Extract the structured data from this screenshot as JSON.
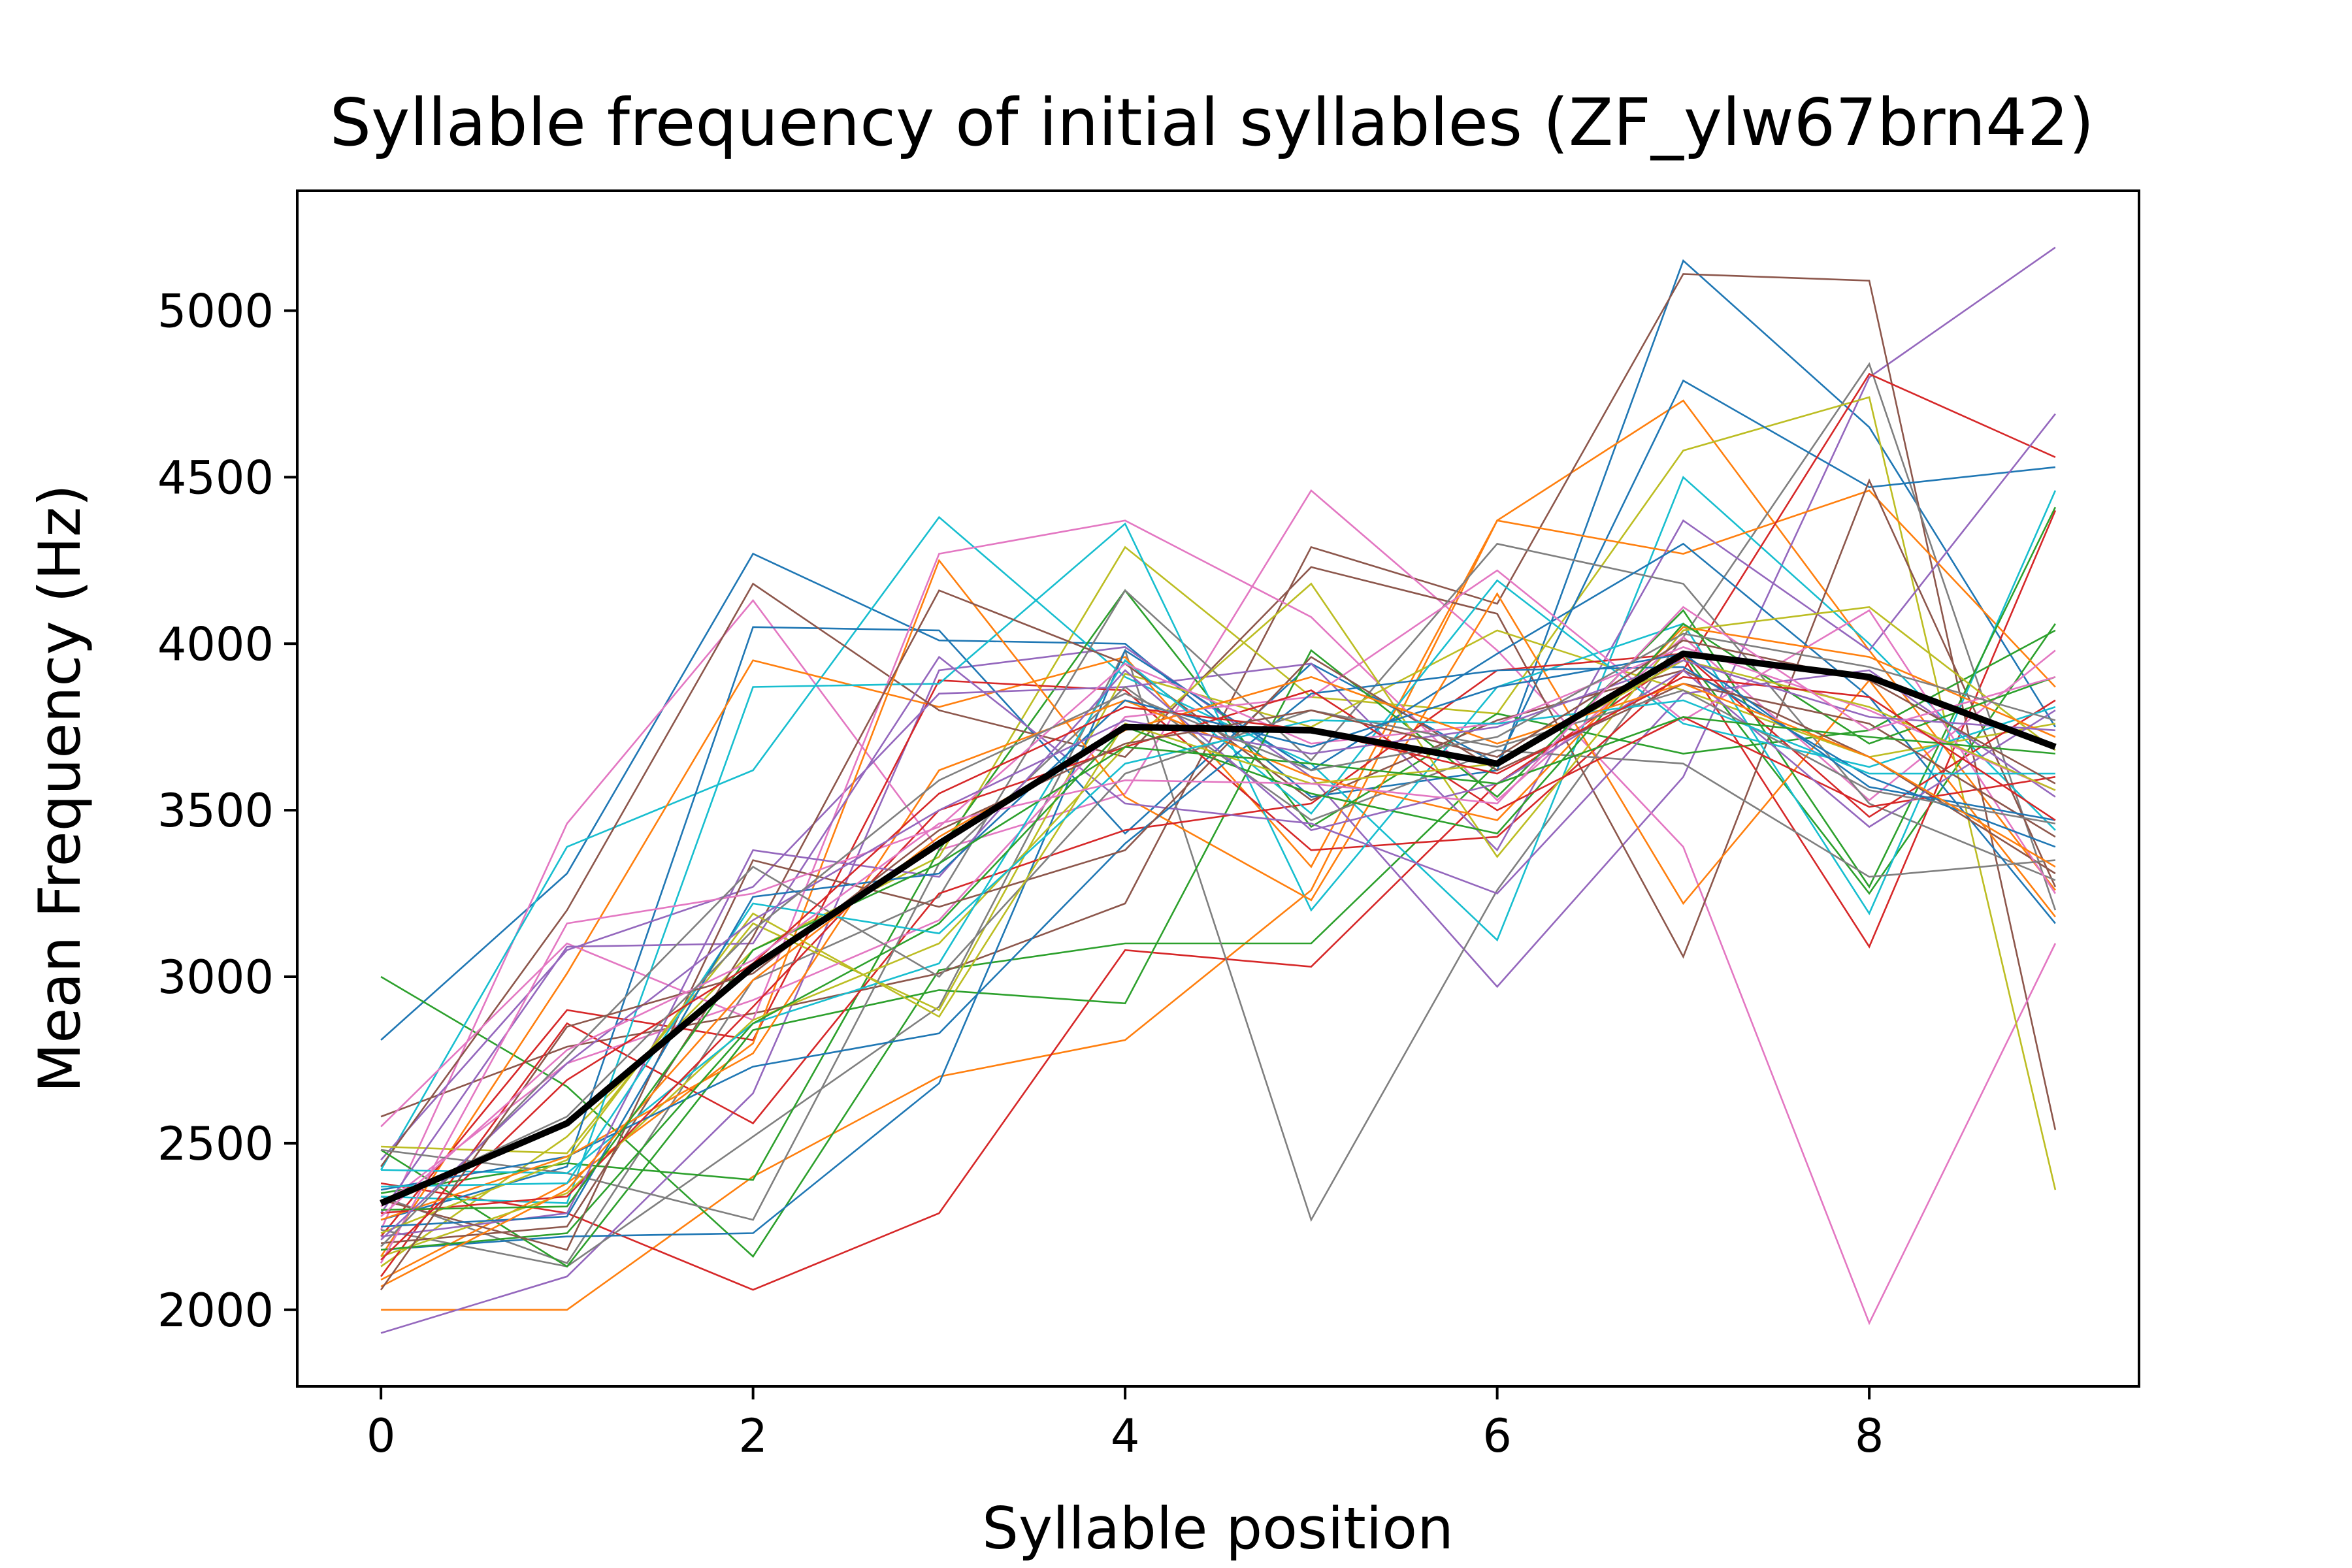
{
  "chart_data": {
    "type": "line",
    "title": "Syllable frequency of initial syllables (ZF_ylw67brn42)",
    "xlabel": "Syllable position",
    "ylabel": "Mean Frequency (Hz)",
    "x": [
      0,
      1,
      2,
      3,
      4,
      5,
      6,
      7,
      8,
      9
    ],
    "xlim": [
      -0.45,
      9.45
    ],
    "ylim": [
      1770,
      5360
    ],
    "xticks": [
      "0",
      "2",
      "4",
      "6",
      "8"
    ],
    "yticks": [
      "2000",
      "2500",
      "3000",
      "3500",
      "4000",
      "4500",
      "5000"
    ],
    "grid": false,
    "legend": "none",
    "mean_series": {
      "color": "#000000",
      "values": [
        2320,
        2560,
        3030,
        3400,
        3750,
        3740,
        3640,
        3970,
        3900,
        3690
      ]
    },
    "series": [
      {
        "color": "#1f77b4",
        "values": [
          2810,
          3310,
          4270,
          4010,
          4000,
          3540,
          3620,
          5150,
          4650,
          3750
        ]
      },
      {
        "color": "#ff7f0e",
        "values": [
          2000,
          2000,
          2400,
          2700,
          2810,
          3260,
          4370,
          4730,
          3980,
          3260
        ]
      },
      {
        "color": "#2ca02c",
        "values": [
          3000,
          2670,
          2160,
          3020,
          3100,
          3100,
          3640,
          3970,
          3250,
          4060
        ]
      },
      {
        "color": "#d62728",
        "values": [
          2380,
          2290,
          2060,
          2290,
          3080,
          3030,
          3580,
          3960,
          3090,
          4400
        ]
      },
      {
        "color": "#9467bd",
        "values": [
          1930,
          2100,
          2650,
          3920,
          3990,
          3600,
          2970,
          3600,
          4800,
          5190
        ]
      },
      {
        "color": "#8c564b",
        "values": [
          2580,
          2790,
          2890,
          3010,
          3220,
          4290,
          4120,
          5110,
          5090,
          2540
        ]
      },
      {
        "color": "#e377c2",
        "values": [
          2240,
          3460,
          4130,
          3380,
          3550,
          4460,
          3980,
          3390,
          1960,
          3100
        ]
      },
      {
        "color": "#7f7f7f",
        "values": [
          2240,
          2130,
          2520,
          2910,
          3980,
          2270,
          3260,
          4020,
          4840,
          3200
        ]
      },
      {
        "color": "#bcbd22",
        "values": [
          2130,
          2520,
          3080,
          3360,
          4290,
          3840,
          3790,
          4580,
          4740,
          2360
        ]
      },
      {
        "color": "#17becf",
        "values": [
          2420,
          3390,
          3620,
          4380,
          3900,
          3640,
          3110,
          4500,
          4000,
          3440
        ]
      },
      {
        "color": "#1f77b4",
        "values": [
          2270,
          2430,
          4050,
          4040,
          3430,
          3940,
          3640,
          4790,
          4470,
          4530
        ]
      },
      {
        "color": "#ff7f0e",
        "values": [
          2160,
          3010,
          3950,
          3810,
          3960,
          3330,
          4370,
          4270,
          4460,
          3870
        ]
      },
      {
        "color": "#2ca02c",
        "values": [
          2350,
          2440,
          2390,
          3380,
          4160,
          3450,
          3790,
          3670,
          3740,
          4040
        ]
      },
      {
        "color": "#d62728",
        "values": [
          2220,
          2900,
          2810,
          3890,
          3860,
          3380,
          3420,
          3920,
          4810,
          4560
        ]
      },
      {
        "color": "#9467bd",
        "values": [
          2450,
          3080,
          3270,
          3850,
          3870,
          3940,
          3380,
          4370,
          3980,
          4690
        ]
      },
      {
        "color": "#8c564b",
        "values": [
          2430,
          3200,
          4180,
          3800,
          3660,
          4230,
          4090,
          3060,
          4490,
          3270
        ]
      },
      {
        "color": "#e377c2",
        "values": [
          2550,
          3100,
          2870,
          4270,
          4370,
          4080,
          3530,
          4020,
          3530,
          3980
        ]
      },
      {
        "color": "#7f7f7f",
        "values": [
          2340,
          2140,
          2990,
          3240,
          4160,
          3650,
          4300,
          4180,
          3520,
          3290
        ]
      },
      {
        "color": "#bcbd22",
        "values": [
          2490,
          2470,
          3160,
          2900,
          3910,
          3750,
          4040,
          3860,
          3660,
          3760
        ]
      },
      {
        "color": "#17becf",
        "values": [
          2340,
          2320,
          3870,
          3880,
          4360,
          3200,
          3870,
          4060,
          3190,
          4460
        ]
      },
      {
        "color": "#1f77b4",
        "values": [
          2180,
          2220,
          2230,
          2680,
          3980,
          3620,
          3970,
          4300,
          3840,
          3160
        ]
      },
      {
        "color": "#ff7f0e",
        "values": [
          2090,
          2380,
          2800,
          4250,
          3540,
          3230,
          4150,
          3220,
          3890,
          3180
        ]
      },
      {
        "color": "#2ca02c",
        "values": [
          2480,
          2130,
          2840,
          2960,
          2920,
          3980,
          3540,
          4100,
          3270,
          4410
        ]
      },
      {
        "color": "#d62728",
        "values": [
          2100,
          2860,
          2560,
          3250,
          3440,
          3520,
          3920,
          3970,
          3480,
          3830
        ]
      },
      {
        "color": "#9467bd",
        "values": [
          2290,
          3090,
          3100,
          3960,
          3520,
          3460,
          3250,
          3850,
          3920,
          3540
        ]
      },
      {
        "color": "#8c564b",
        "values": [
          2200,
          2250,
          3120,
          4160,
          3940,
          3530,
          3770,
          3920,
          3660,
          3310
        ]
      },
      {
        "color": "#e377c2",
        "values": [
          2310,
          2740,
          2930,
          3170,
          3780,
          3840,
          4220,
          3770,
          4100,
          3250
        ]
      },
      {
        "color": "#7f7f7f",
        "values": [
          2480,
          2410,
          2270,
          3340,
          3870,
          3470,
          3680,
          3640,
          3300,
          3350
        ]
      },
      {
        "color": "#bcbd22",
        "values": [
          2160,
          2350,
          2870,
          3100,
          3690,
          4180,
          3360,
          4040,
          4110,
          3680
        ]
      },
      {
        "color": "#17becf",
        "values": [
          2420,
          2410,
          2860,
          3040,
          3950,
          3490,
          4190,
          3760,
          3630,
          3810
        ]
      },
      {
        "color": "#1f77b4",
        "values": [
          2360,
          2460,
          2730,
          2830,
          3400,
          3850,
          3920,
          3930,
          3600,
          3390
        ]
      },
      {
        "color": "#ff7f0e",
        "values": [
          2270,
          2460,
          2770,
          3620,
          3830,
          3600,
          3470,
          4050,
          3960,
          3720
        ]
      },
      {
        "color": "#2ca02c",
        "values": [
          2180,
          2230,
          2860,
          3160,
          3750,
          3550,
          3430,
          4060,
          3700,
          3900
        ]
      },
      {
        "color": "#d62728",
        "values": [
          2290,
          2340,
          2910,
          3500,
          3690,
          3860,
          3500,
          3780,
          3510,
          3600
        ]
      },
      {
        "color": "#9467bd",
        "values": [
          2220,
          2290,
          3380,
          3300,
          3920,
          3440,
          3580,
          3920,
          3450,
          3800
        ]
      },
      {
        "color": "#8c564b",
        "values": [
          2330,
          2180,
          3350,
          3210,
          3380,
          3960,
          3620,
          3880,
          3760,
          3420
        ]
      },
      {
        "color": "#e377c2",
        "values": [
          2140,
          3160,
          3250,
          3450,
          3940,
          3700,
          3760,
          3990,
          3800,
          3560
        ]
      },
      {
        "color": "#7f7f7f",
        "values": [
          2190,
          2760,
          3330,
          3000,
          3610,
          3800,
          3690,
          3860,
          3560,
          3460
        ]
      },
      {
        "color": "#bcbd22",
        "values": [
          2230,
          2450,
          3190,
          2880,
          3760,
          3580,
          3640,
          3950,
          3810,
          3560
        ]
      },
      {
        "color": "#17becf",
        "values": [
          2370,
          2380,
          3220,
          3130,
          3640,
          3770,
          3760,
          3830,
          3610,
          3610
        ]
      },
      {
        "color": "#1f77b4",
        "values": [
          2250,
          2280,
          3240,
          3310,
          3830,
          3690,
          3870,
          3970,
          3570,
          3470
        ]
      },
      {
        "color": "#ff7f0e",
        "values": [
          2070,
          2360,
          2990,
          3420,
          3740,
          3900,
          3700,
          3880,
          3660,
          3330
        ]
      },
      {
        "color": "#2ca02c",
        "values": [
          2300,
          2310,
          3080,
          3340,
          3690,
          3640,
          3580,
          3780,
          3720,
          3670
        ]
      },
      {
        "color": "#d62728",
        "values": [
          2150,
          2690,
          3040,
          3550,
          3810,
          3740,
          3610,
          3900,
          3840,
          3470
        ]
      },
      {
        "color": "#9467bd",
        "values": [
          2210,
          2740,
          3170,
          3500,
          3770,
          3670,
          3750,
          3950,
          3780,
          3740
        ]
      },
      {
        "color": "#8c564b",
        "values": [
          2060,
          2850,
          3010,
          3440,
          3700,
          3800,
          3660,
          4010,
          3890,
          3580
        ]
      },
      {
        "color": "#e377c2",
        "values": [
          2280,
          2780,
          3050,
          3460,
          3590,
          3580,
          3520,
          4110,
          3740,
          3900
        ]
      },
      {
        "color": "#7f7f7f",
        "values": [
          2320,
          2580,
          3140,
          3590,
          3850,
          3620,
          3720,
          4030,
          3930,
          3770
        ]
      }
    ]
  }
}
